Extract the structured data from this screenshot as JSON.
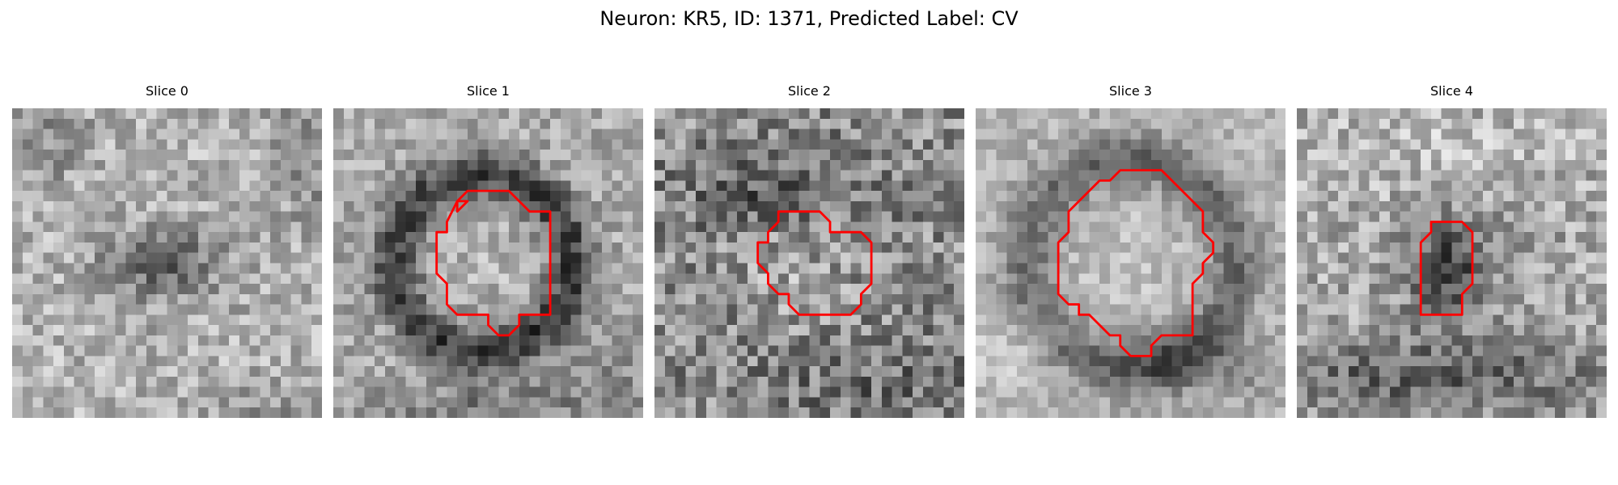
{
  "figure": {
    "title": "Neuron: KR5, ID: 1371, Predicted Label: CV"
  },
  "colors": {
    "contour": "#ff0000",
    "background": "#ffffff"
  },
  "panels": [
    {
      "title": "Slice 0",
      "image": "grayscale-microscopy-patch",
      "roi_contour": false
    },
    {
      "title": "Slice 1",
      "image": "grayscale-microscopy-patch",
      "roi_contour": true
    },
    {
      "title": "Slice 2",
      "image": "grayscale-microscopy-patch",
      "roi_contour": true
    },
    {
      "title": "Slice 3",
      "image": "grayscale-microscopy-patch",
      "roi_contour": true
    },
    {
      "title": "Slice 4",
      "image": "grayscale-microscopy-patch",
      "roi_contour": true
    }
  ]
}
